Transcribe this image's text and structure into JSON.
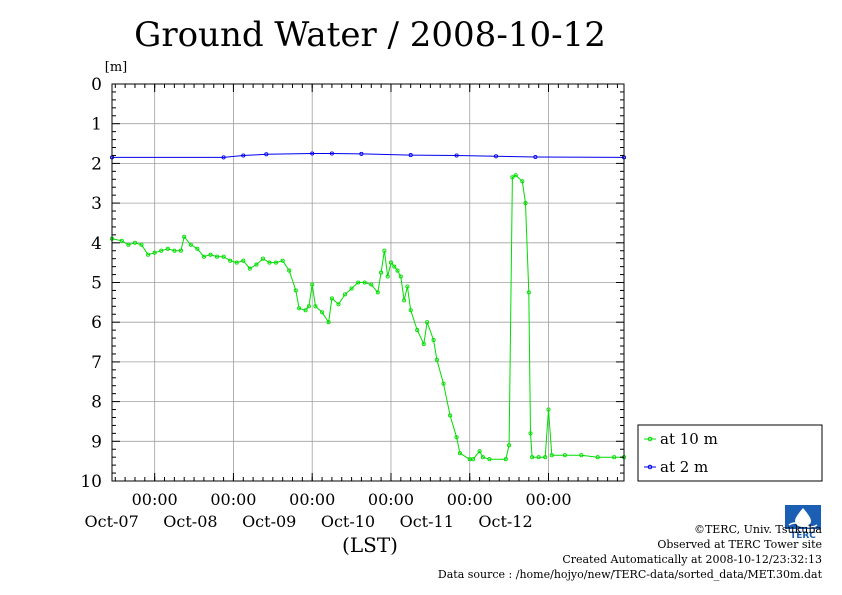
{
  "chart_data": {
    "type": "line",
    "title": "Ground Water / 2008-10-12",
    "ylabel": "[m]",
    "xlabel": "(LST)",
    "ylim": [
      0,
      10
    ],
    "y_inverted": true,
    "yticks": [
      "0",
      "1",
      "2",
      "3",
      "4",
      "5",
      "6",
      "7",
      "8",
      "9",
      "10"
    ],
    "xlim": [
      "2008-10-06T11:00",
      "2008-10-12T23:00"
    ],
    "xticks": [
      {
        "time": "2008-10-07T00:00",
        "time_label": "00:00",
        "date_label": "Oct-07"
      },
      {
        "time": "2008-10-08T00:00",
        "time_label": "00:00",
        "date_label": "Oct-08"
      },
      {
        "time": "2008-10-09T00:00",
        "time_label": "00:00",
        "date_label": "Oct-09"
      },
      {
        "time": "2008-10-10T00:00",
        "time_label": "00:00",
        "date_label": "Oct-10"
      },
      {
        "time": "2008-10-11T00:00",
        "time_label": "00:00",
        "date_label": "Oct-11"
      },
      {
        "time": "2008-10-12T00:00",
        "time_label": "00:00",
        "date_label": "Oct-12"
      }
    ],
    "grid": true,
    "legend_position": "bottom-right outside",
    "series": [
      {
        "name": "at 10 m",
        "color": "#00dd00",
        "points": [
          [
            "2008-10-06T11:00",
            3.9
          ],
          [
            "2008-10-06T14:00",
            3.95
          ],
          [
            "2008-10-06T16:00",
            4.05
          ],
          [
            "2008-10-06T18:00",
            4.0
          ],
          [
            "2008-10-06T20:00",
            4.05
          ],
          [
            "2008-10-06T22:00",
            4.3
          ],
          [
            "2008-10-07T00:00",
            4.25
          ],
          [
            "2008-10-07T02:00",
            4.2
          ],
          [
            "2008-10-07T04:00",
            4.15
          ],
          [
            "2008-10-07T06:00",
            4.2
          ],
          [
            "2008-10-07T08:00",
            4.2
          ],
          [
            "2008-10-07T09:00",
            3.85
          ],
          [
            "2008-10-07T11:00",
            4.05
          ],
          [
            "2008-10-07T13:00",
            4.15
          ],
          [
            "2008-10-07T15:00",
            4.35
          ],
          [
            "2008-10-07T17:00",
            4.3
          ],
          [
            "2008-10-07T19:00",
            4.35
          ],
          [
            "2008-10-07T21:00",
            4.35
          ],
          [
            "2008-10-07T23:00",
            4.45
          ],
          [
            "2008-10-08T01:00",
            4.5
          ],
          [
            "2008-10-08T03:00",
            4.45
          ],
          [
            "2008-10-08T05:00",
            4.65
          ],
          [
            "2008-10-08T07:00",
            4.55
          ],
          [
            "2008-10-08T09:00",
            4.4
          ],
          [
            "2008-10-08T11:00",
            4.5
          ],
          [
            "2008-10-08T13:00",
            4.5
          ],
          [
            "2008-10-08T15:00",
            4.45
          ],
          [
            "2008-10-08T17:00",
            4.7
          ],
          [
            "2008-10-08T19:00",
            5.2
          ],
          [
            "2008-10-08T20:00",
            5.65
          ],
          [
            "2008-10-08T22:00",
            5.7
          ],
          [
            "2008-10-08T23:00",
            5.6
          ],
          [
            "2008-10-09T00:00",
            5.05
          ],
          [
            "2008-10-09T01:00",
            5.6
          ],
          [
            "2008-10-09T03:00",
            5.75
          ],
          [
            "2008-10-09T05:00",
            6.0
          ],
          [
            "2008-10-09T06:00",
            5.4
          ],
          [
            "2008-10-09T08:00",
            5.55
          ],
          [
            "2008-10-09T10:00",
            5.3
          ],
          [
            "2008-10-09T12:00",
            5.15
          ],
          [
            "2008-10-09T14:00",
            5.0
          ],
          [
            "2008-10-09T16:00",
            5.0
          ],
          [
            "2008-10-09T18:00",
            5.05
          ],
          [
            "2008-10-09T20:00",
            5.25
          ],
          [
            "2008-10-09T21:00",
            4.75
          ],
          [
            "2008-10-09T22:00",
            4.2
          ],
          [
            "2008-10-09T23:00",
            4.85
          ],
          [
            "2008-10-10T00:00",
            4.5
          ],
          [
            "2008-10-10T01:00",
            4.6
          ],
          [
            "2008-10-10T02:00",
            4.7
          ],
          [
            "2008-10-10T03:00",
            4.85
          ],
          [
            "2008-10-10T04:00",
            5.45
          ],
          [
            "2008-10-10T05:00",
            5.1
          ],
          [
            "2008-10-10T06:00",
            5.7
          ],
          [
            "2008-10-10T08:00",
            6.2
          ],
          [
            "2008-10-10T10:00",
            6.55
          ],
          [
            "2008-10-10T11:00",
            6.0
          ],
          [
            "2008-10-10T13:00",
            6.45
          ],
          [
            "2008-10-10T14:00",
            6.95
          ],
          [
            "2008-10-10T16:00",
            7.55
          ],
          [
            "2008-10-10T18:00",
            8.35
          ],
          [
            "2008-10-10T20:00",
            8.9
          ],
          [
            "2008-10-10T21:00",
            9.3
          ],
          [
            "2008-10-11T00:00",
            9.45
          ],
          [
            "2008-10-11T01:00",
            9.45
          ],
          [
            "2008-10-11T03:00",
            9.25
          ],
          [
            "2008-10-11T04:00",
            9.4
          ],
          [
            "2008-10-11T06:00",
            9.45
          ],
          [
            "2008-10-11T11:00",
            9.45
          ],
          [
            "2008-10-11T12:00",
            9.1
          ],
          [
            "2008-10-11T13:00",
            2.35
          ],
          [
            "2008-10-11T14:00",
            2.3
          ],
          [
            "2008-10-11T16:00",
            2.45
          ],
          [
            "2008-10-11T17:00",
            3.0
          ],
          [
            "2008-10-11T18:00",
            5.25
          ],
          [
            "2008-10-11T18:30",
            8.8
          ],
          [
            "2008-10-11T19:00",
            9.4
          ],
          [
            "2008-10-11T21:00",
            9.4
          ],
          [
            "2008-10-11T23:00",
            9.4
          ],
          [
            "2008-10-12T00:00",
            8.2
          ],
          [
            "2008-10-12T01:00",
            9.35
          ],
          [
            "2008-10-12T05:00",
            9.35
          ],
          [
            "2008-10-12T10:00",
            9.35
          ],
          [
            "2008-10-12T15:00",
            9.4
          ],
          [
            "2008-10-12T20:00",
            9.4
          ],
          [
            "2008-10-12T23:00",
            9.4
          ]
        ]
      },
      {
        "name": "at 2 m",
        "color": "#0000ee",
        "points": [
          [
            "2008-10-06T11:00",
            1.85
          ],
          [
            "2008-10-07T21:00",
            1.85
          ],
          [
            "2008-10-08T03:00",
            1.8
          ],
          [
            "2008-10-08T10:00",
            1.77
          ],
          [
            "2008-10-09T00:00",
            1.75
          ],
          [
            "2008-10-09T06:00",
            1.75
          ],
          [
            "2008-10-09T15:00",
            1.76
          ],
          [
            "2008-10-10T06:00",
            1.79
          ],
          [
            "2008-10-10T20:00",
            1.8
          ],
          [
            "2008-10-11T08:00",
            1.82
          ],
          [
            "2008-10-11T20:00",
            1.84
          ],
          [
            "2008-10-12T23:00",
            1.85
          ]
        ]
      }
    ]
  },
  "credits": {
    "copyright": "©TERC, Univ. Tsukuba",
    "observed": "Observed at TERC Tower site",
    "created": "Created Automatically at 2008-10-12/23:32:13",
    "source": "Data source : /home/hojyo/new/TERC-data/sorted_data/MET.30m.dat",
    "logo_text": "TERC"
  }
}
